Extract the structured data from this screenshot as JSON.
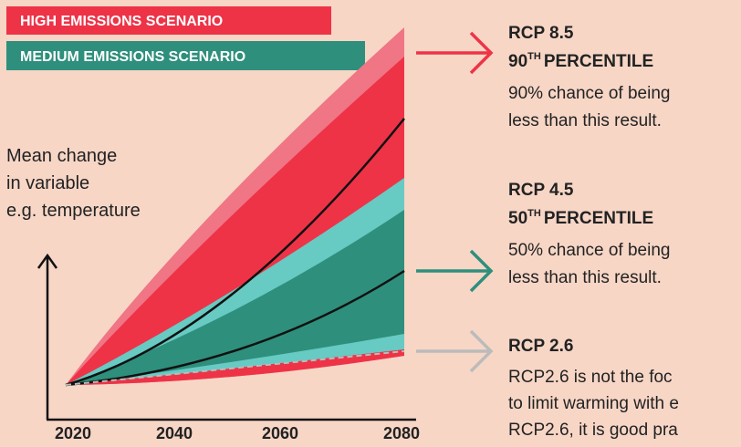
{
  "legend": [
    "HIGH EMISSIONS SCENARIO",
    "MEDIUM EMISSIONS SCENARIO"
  ],
  "y_axis_label": [
    "Mean change",
    "in variable",
    "e.g. temperature"
  ],
  "x_axis": {
    "labels": [
      "2020",
      "2040",
      "2060",
      "2080"
    ]
  },
  "annotations": [
    {
      "title": "RCP 8.5",
      "percentile": {
        "number": "90",
        "suffix": "TH",
        "rest": "PERCENTILE"
      },
      "lines": [
        "90% chance of being",
        "less than this result."
      ]
    },
    {
      "title": "RCP 4.5",
      "percentile": {
        "number": "50",
        "suffix": "TH",
        "rest": "PERCENTILE"
      },
      "lines": [
        "50% chance of being",
        "less than this result."
      ]
    },
    {
      "title": "RCP 2.6",
      "lines": [
        "RCP2.6 is not the foc",
        "to limit warming with e",
        "RCP2.6, it is good pra"
      ]
    }
  ]
}
